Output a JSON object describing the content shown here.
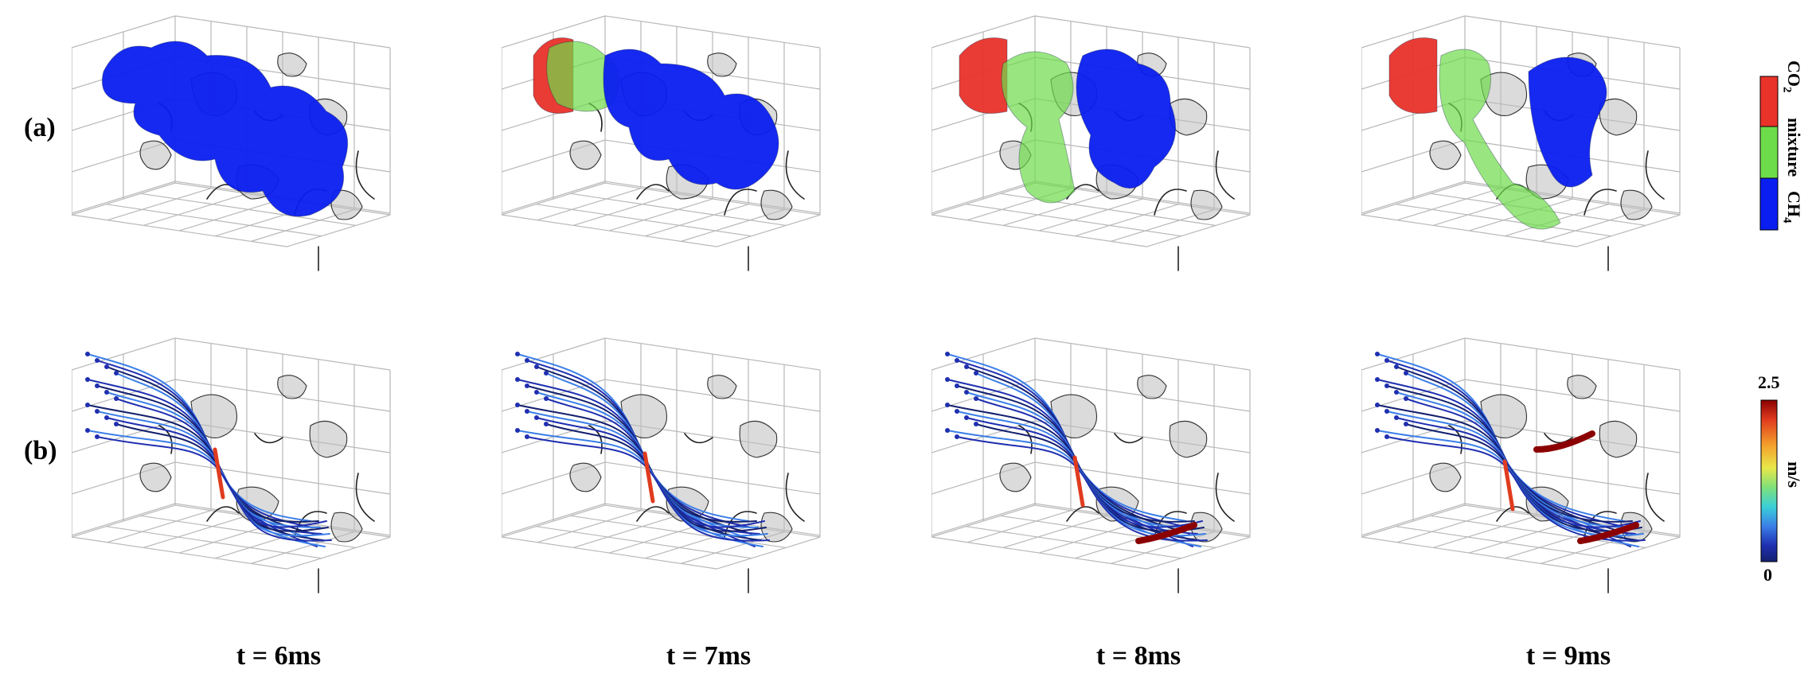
{
  "rows": [
    {
      "id": "a",
      "label": "(a)"
    },
    {
      "id": "b",
      "label": "(b)"
    }
  ],
  "times": [
    "t = 6ms",
    "t = 7ms",
    "t = 8ms",
    "t = 9ms"
  ],
  "colorbar_species": {
    "labels": [
      "CO",
      "mixture",
      "CH"
    ],
    "subscripts": [
      "2",
      "4"
    ],
    "colors": {
      "co2": "#e8322a",
      "mixture": "#6ddc4a",
      "ch4": "#0a1ef0"
    }
  },
  "colorbar_velocity": {
    "max": "2.5",
    "min": "0",
    "unit": "m/s",
    "stops": [
      "#8b0000",
      "#e03b1e",
      "#f4a12c",
      "#e8e84a",
      "#7fe07a",
      "#3ad0d8",
      "#3b7fe8",
      "#1f2fb0",
      "#14206e"
    ]
  },
  "colors": {
    "grid": "#b8b8b8",
    "solid": "#9a9a9a",
    "co2": "#e8322a",
    "mixture": "#6ddc4a",
    "ch4": "#0a1ef0"
  }
}
